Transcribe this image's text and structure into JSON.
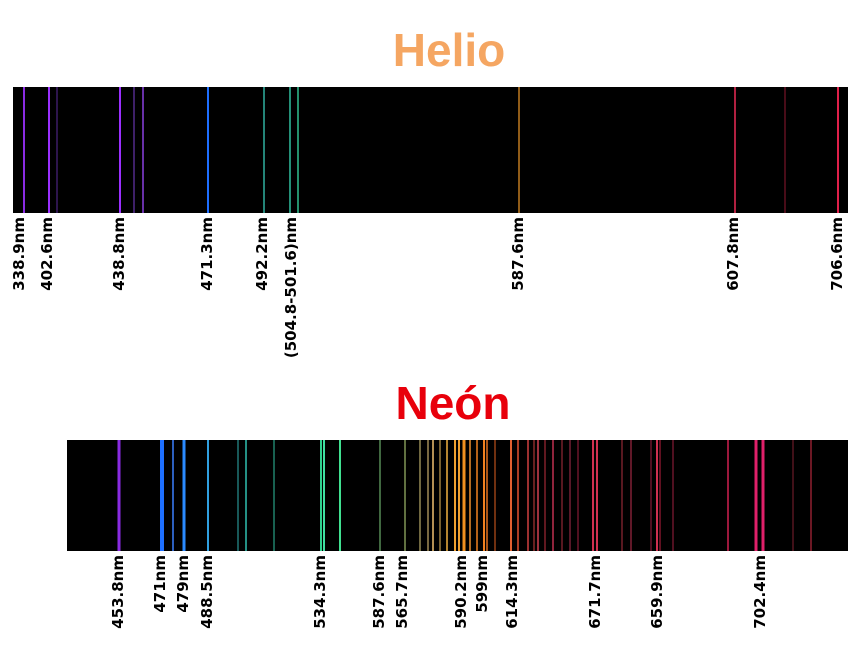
{
  "helio": {
    "title": "Helio",
    "labels": [
      "338.9nm",
      "402.6nm",
      "438.8nm",
      "471.3nm",
      "492.2nm",
      "(504.8-501.6)nm",
      "587.6nm",
      "607.8nm",
      "706.6nm"
    ]
  },
  "neon": {
    "title": "Neón",
    "labels": [
      "453.8nm",
      "471nm",
      "479nm",
      "488.5nm",
      "534.3nm",
      "587.6nm",
      "565.7nm",
      "590.2nm",
      "599nm",
      "614.3nm",
      "671.7nm",
      "659.9nm",
      "702.4nm"
    ]
  }
}
